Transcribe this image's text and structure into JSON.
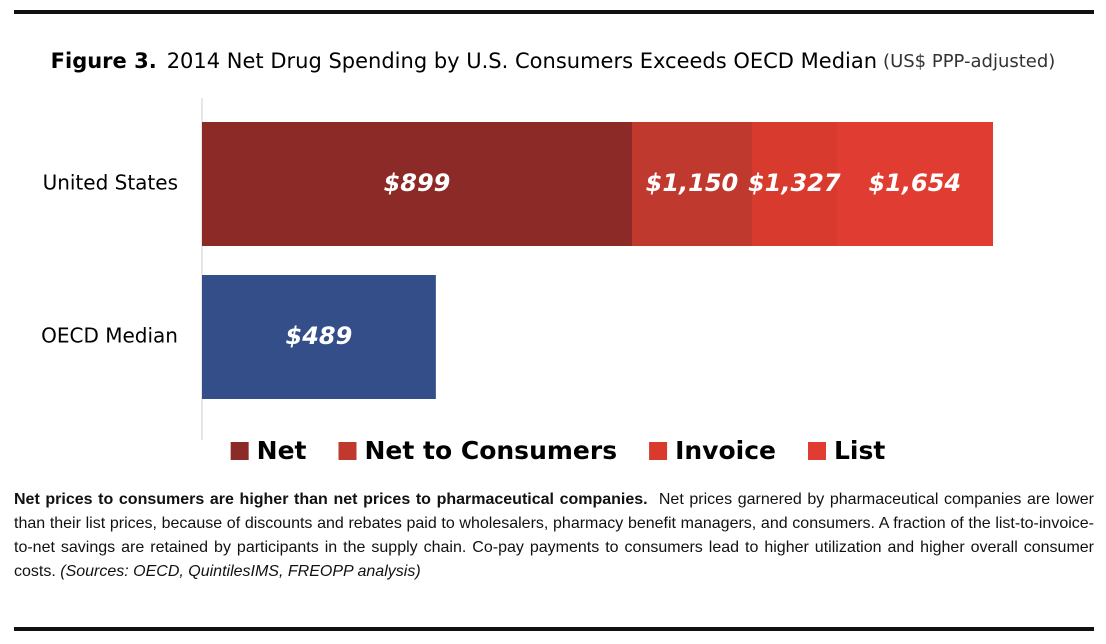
{
  "chart_data": {
    "type": "bar",
    "orientation": "horizontal",
    "mode": "overlap",
    "title_label": "Figure 3.",
    "title": "2014 Net Drug Spending by U.S. Consumers Exceeds OECD Median",
    "subtitle": "(US$ PPP-adjusted)",
    "categories": [
      "United States",
      "OECD Median"
    ],
    "series": [
      {
        "name": "Net",
        "color": "#8b2a27",
        "point_colors": [
          "#8b2a27",
          "#344e8a"
        ],
        "values": [
          899,
          489
        ],
        "value_labels": [
          "$899",
          "$489"
        ]
      },
      {
        "name": "Net to Consumers",
        "color": "#c0392f",
        "values": [
          1150,
          null
        ],
        "value_labels": [
          "$1,150",
          null
        ]
      },
      {
        "name": "Invoice",
        "color": "#d83a2e",
        "values": [
          1327,
          null
        ],
        "value_labels": [
          "$1,327",
          null
        ]
      },
      {
        "name": "List",
        "color": "#e03c31",
        "values": [
          1654,
          null
        ],
        "value_labels": [
          "$1,654",
          null
        ]
      }
    ]
  },
  "caption": {
    "lead": "Net prices to consumers are higher than net prices to pharmaceutical companies.",
    "body": "Net prices garnered by pharmaceutical companies are lower than their list prices, because of discounts and rebates paid to wholesalers, pharmacy benefit managers, and consumers. A fraction of the list-to-invoice-to-net savings are retained by participants in the supply chain. Co-pay payments to consumers lead to higher utilization and higher overall consumer costs.",
    "sources": "(Sources: OECD, QuintilesIMS, FREOPP analysis)"
  }
}
